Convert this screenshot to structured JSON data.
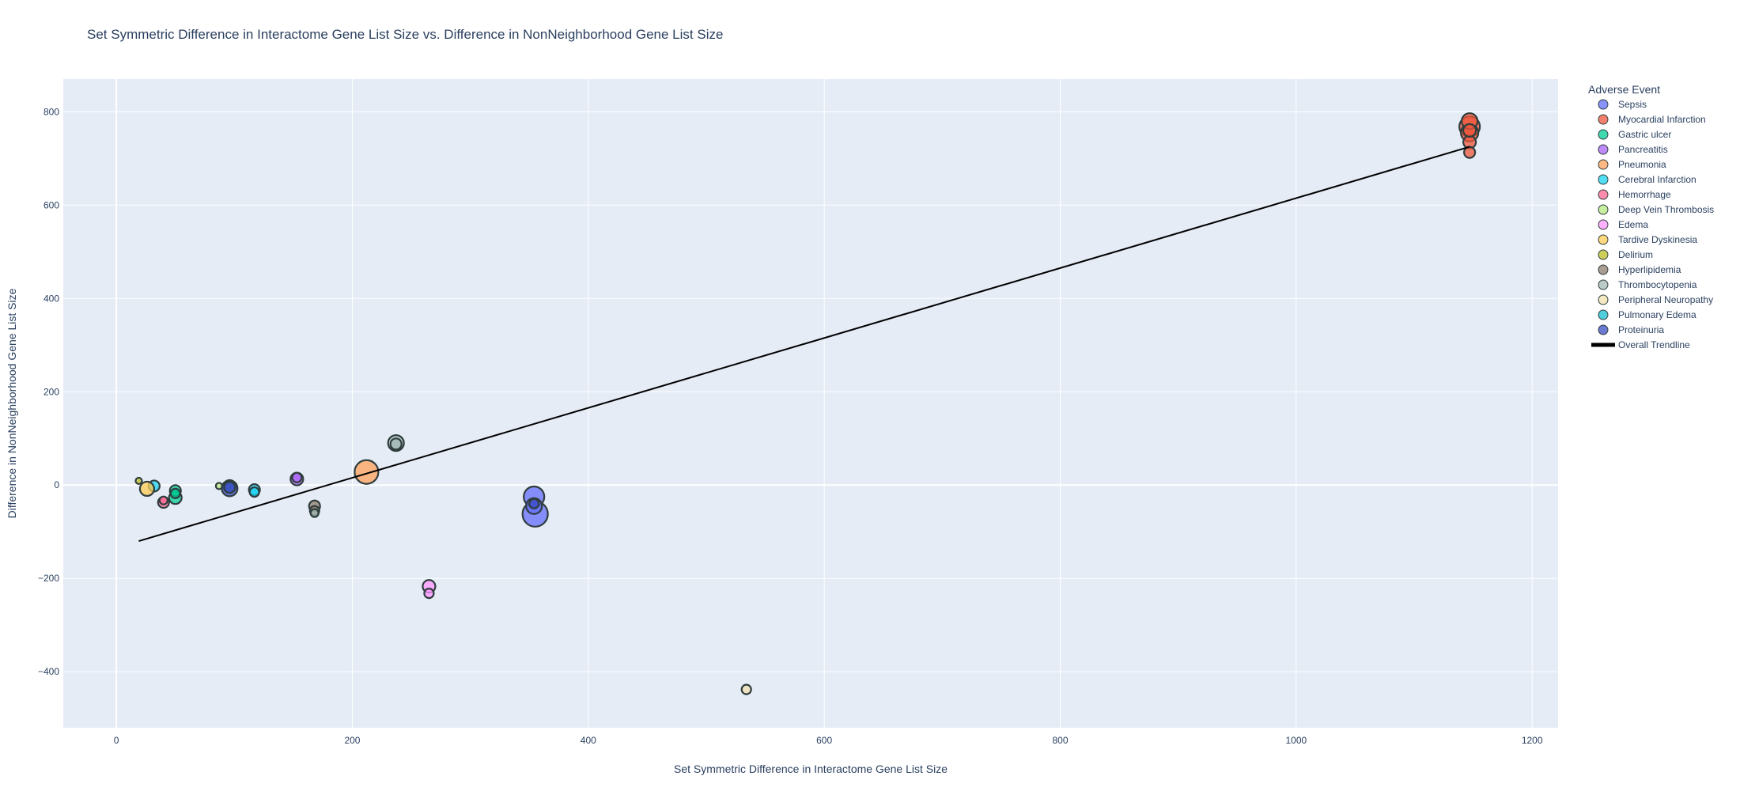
{
  "chart_data": {
    "type": "scatter",
    "title": "Set Symmetric Difference in Interactome Gene List Size  vs. Difference in NonNeighborhood Gene List Size",
    "xlabel": "Set Symmetric Difference in Interactome Gene List Size",
    "ylabel": "Difference in NonNeighborhood Gene List Size",
    "xlim": [
      -45,
      1222
    ],
    "ylim": [
      -520,
      870
    ],
    "xticks": [
      0,
      200,
      400,
      600,
      800,
      1000,
      1200
    ],
    "yticks": [
      -400,
      -200,
      0,
      200,
      400,
      600,
      800
    ],
    "ytick_labels": [
      "−400",
      "−200",
      "0",
      "200",
      "400",
      "600",
      "800"
    ],
    "grid": true,
    "legend_title": "Adverse Event",
    "legend_position": "right",
    "series": [
      {
        "name": "Sepsis",
        "color": "#636efa",
        "points": [
          [
            354,
            -25,
            13
          ],
          [
            355,
            -62,
            16
          ],
          [
            354,
            -45,
            10
          ]
        ]
      },
      {
        "name": "Myocardial Infarction",
        "color": "#ef553b",
        "points": [
          [
            1147,
            713,
            7
          ],
          [
            1147,
            735,
            8
          ],
          [
            1147,
            755,
            11
          ],
          [
            1147,
            768,
            13
          ],
          [
            1147,
            780,
            10
          ],
          [
            1147,
            760,
            8
          ]
        ]
      },
      {
        "name": "Gastric ulcer",
        "color": "#00cc96",
        "points": [
          [
            50,
            -27,
            8
          ],
          [
            50,
            -12,
            7
          ],
          [
            50,
            -18,
            6
          ]
        ]
      },
      {
        "name": "Pancreatitis",
        "color": "#ab63fa",
        "points": [
          [
            153,
            13,
            8
          ],
          [
            153,
            16,
            6
          ]
        ]
      },
      {
        "name": "Pneumonia",
        "color": "#ffa15a",
        "points": [
          [
            212,
            28,
            15
          ]
        ]
      },
      {
        "name": "Cerebral Infarction",
        "color": "#19d3f3",
        "points": [
          [
            32,
            -2,
            7
          ],
          [
            117,
            -10,
            7
          ],
          [
            117,
            -15,
            6
          ]
        ]
      },
      {
        "name": "Hemorrhage",
        "color": "#ff6692",
        "points": [
          [
            40,
            -37,
            7
          ],
          [
            40,
            -33,
            5
          ]
        ]
      },
      {
        "name": "Deep Vein Thrombosis",
        "color": "#b6e880",
        "points": [
          [
            87,
            -2,
            4
          ]
        ]
      },
      {
        "name": "Edema",
        "color": "#ff97ff",
        "points": [
          [
            265,
            -217,
            8
          ],
          [
            265,
            -232,
            6
          ]
        ]
      },
      {
        "name": "Tardive Dyskinesia",
        "color": "#fecb52",
        "points": [
          [
            26,
            -8,
            9
          ]
        ]
      },
      {
        "name": "Delirium",
        "color": "#bcbd22",
        "points": [
          [
            19,
            9,
            4
          ]
        ]
      },
      {
        "name": "Hyperlipidemia",
        "color": "#8c7b6b",
        "points": [
          [
            168,
            -45,
            7
          ],
          [
            168,
            -55,
            6
          ]
        ]
      },
      {
        "name": "Thrombocytopenia",
        "color": "#a3b8b4",
        "points": [
          [
            237,
            90,
            10
          ],
          [
            237,
            88,
            7
          ],
          [
            168,
            -60,
            5
          ]
        ]
      },
      {
        "name": "Peripheral Neuropathy",
        "color": "#f2e2b0",
        "points": [
          [
            534,
            -438,
            6
          ]
        ]
      },
      {
        "name": "Pulmonary Edema",
        "color": "#17becf",
        "points": [
          [
            96,
            -3,
            8
          ]
        ]
      },
      {
        "name": "Proteinuria",
        "color": "#3b4cc0",
        "points": [
          [
            96,
            -7,
            10
          ],
          [
            96,
            -5,
            7
          ],
          [
            354,
            -40,
            6
          ]
        ]
      }
    ],
    "trendline": {
      "name": "Overall Trendline",
      "color": "#000000",
      "x": [
        19,
        1147
      ],
      "y": [
        -120,
        725
      ]
    }
  }
}
